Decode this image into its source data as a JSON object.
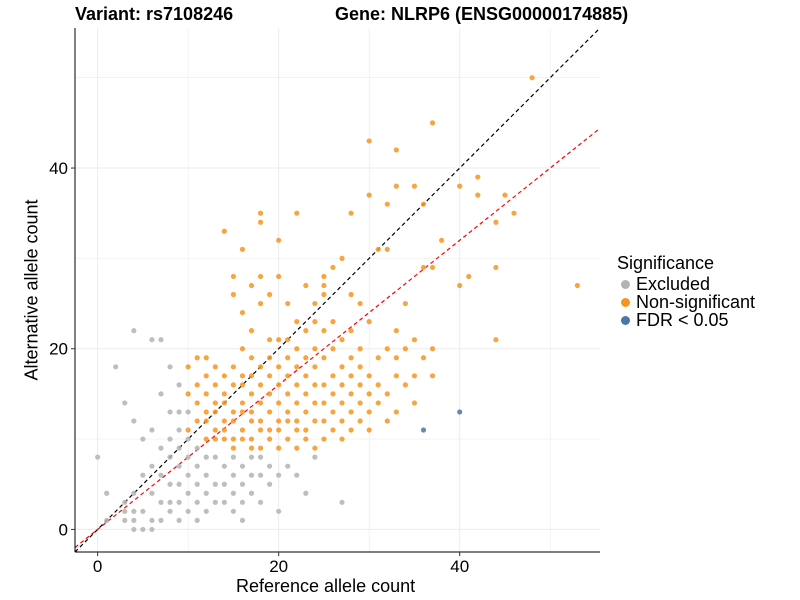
{
  "title_left": "Variant: rs7108246",
  "title_right": "Gene: NLRP6 (ENSG00000174885)",
  "chart_data": {
    "type": "scatter",
    "xlabel": "Reference allele count",
    "ylabel": "Alternative allele count",
    "xlim": [
      -2.5,
      55.5
    ],
    "ylim": [
      -2.5,
      55.5
    ],
    "x_ticks": [
      0,
      20,
      40
    ],
    "y_ticks": [
      0,
      20,
      40
    ],
    "grid": true,
    "legend_position": "right",
    "legend_title": "Significance",
    "reference_lines": [
      {
        "name": "identity",
        "slope": 1.0,
        "intercept": 0,
        "color": "#000000",
        "style": "dashed"
      },
      {
        "name": "fit",
        "slope": 0.8,
        "intercept": 0,
        "color": "#ff0000",
        "style": "dashed"
      }
    ],
    "series": [
      {
        "name": "Excluded",
        "color": "#b3b3b3",
        "points": [
          [
            0,
            8
          ],
          [
            1,
            4
          ],
          [
            1,
            1
          ],
          [
            2,
            18
          ],
          [
            3,
            14
          ],
          [
            3,
            3
          ],
          [
            3,
            2
          ],
          [
            3,
            1
          ],
          [
            4,
            22
          ],
          [
            4,
            12
          ],
          [
            4,
            4
          ],
          [
            4,
            2
          ],
          [
            4,
            1
          ],
          [
            4,
            0
          ],
          [
            5,
            10
          ],
          [
            5,
            6
          ],
          [
            5,
            2
          ],
          [
            5,
            0
          ],
          [
            6,
            21
          ],
          [
            6,
            11
          ],
          [
            6,
            7
          ],
          [
            6,
            4
          ],
          [
            6,
            1
          ],
          [
            6,
            0
          ],
          [
            7,
            21
          ],
          [
            7,
            15
          ],
          [
            7,
            9
          ],
          [
            7,
            6
          ],
          [
            7,
            3
          ],
          [
            7,
            1
          ],
          [
            8,
            18
          ],
          [
            8,
            13
          ],
          [
            8,
            10
          ],
          [
            8,
            8
          ],
          [
            8,
            5
          ],
          [
            8,
            3
          ],
          [
            8,
            2
          ],
          [
            9,
            16
          ],
          [
            9,
            13
          ],
          [
            9,
            11
          ],
          [
            9,
            9
          ],
          [
            9,
            7
          ],
          [
            9,
            5
          ],
          [
            9,
            3
          ],
          [
            9,
            1
          ],
          [
            10,
            13
          ],
          [
            10,
            10
          ],
          [
            10,
            8
          ],
          [
            10,
            6
          ],
          [
            10,
            4
          ],
          [
            10,
            2
          ],
          [
            11,
            9
          ],
          [
            11,
            7
          ],
          [
            11,
            5
          ],
          [
            11,
            3
          ],
          [
            11,
            1
          ],
          [
            12,
            8
          ],
          [
            12,
            6
          ],
          [
            12,
            4
          ],
          [
            12,
            2
          ],
          [
            13,
            8
          ],
          [
            13,
            5
          ],
          [
            13,
            3
          ],
          [
            14,
            7
          ],
          [
            14,
            5
          ],
          [
            14,
            3
          ],
          [
            15,
            8
          ],
          [
            15,
            6
          ],
          [
            15,
            4
          ],
          [
            15,
            2
          ],
          [
            16,
            7
          ],
          [
            16,
            5
          ],
          [
            16,
            3
          ],
          [
            16,
            1
          ],
          [
            17,
            8
          ],
          [
            17,
            6
          ],
          [
            17,
            4
          ],
          [
            18,
            8
          ],
          [
            18,
            6
          ],
          [
            18,
            3
          ],
          [
            19,
            7
          ],
          [
            19,
            5
          ],
          [
            20,
            6
          ],
          [
            20,
            2
          ],
          [
            21,
            7
          ],
          [
            22,
            6
          ],
          [
            24,
            8
          ],
          [
            23,
            4
          ],
          [
            27,
            3
          ]
        ]
      },
      {
        "name": "Non-significant",
        "color": "#f7941d",
        "points": [
          [
            10,
            11
          ],
          [
            10,
            15
          ],
          [
            10,
            18
          ],
          [
            11,
            12
          ],
          [
            11,
            14
          ],
          [
            11,
            16
          ],
          [
            11,
            19
          ],
          [
            12,
            10
          ],
          [
            12,
            12
          ],
          [
            12,
            13
          ],
          [
            12,
            15
          ],
          [
            12,
            17
          ],
          [
            12,
            19
          ],
          [
            13,
            10
          ],
          [
            13,
            11
          ],
          [
            13,
            13
          ],
          [
            13,
            14
          ],
          [
            13,
            16
          ],
          [
            13,
            18
          ],
          [
            14,
            10
          ],
          [
            14,
            11
          ],
          [
            14,
            12
          ],
          [
            14,
            14
          ],
          [
            14,
            15
          ],
          [
            14,
            17
          ],
          [
            14,
            33
          ],
          [
            15,
            9
          ],
          [
            15,
            10
          ],
          [
            15,
            12
          ],
          [
            15,
            13
          ],
          [
            15,
            16
          ],
          [
            15,
            18
          ],
          [
            15,
            28
          ],
          [
            15,
            26
          ],
          [
            16,
            10
          ],
          [
            16,
            11
          ],
          [
            16,
            13
          ],
          [
            16,
            14
          ],
          [
            16,
            16
          ],
          [
            16,
            17
          ],
          [
            16,
            20
          ],
          [
            16,
            24
          ],
          [
            16,
            31
          ],
          [
            17,
            9
          ],
          [
            17,
            10
          ],
          [
            17,
            12
          ],
          [
            17,
            13
          ],
          [
            17,
            15
          ],
          [
            17,
            17
          ],
          [
            17,
            19
          ],
          [
            17,
            22
          ],
          [
            17,
            27
          ],
          [
            18,
            9
          ],
          [
            18,
            11
          ],
          [
            18,
            12
          ],
          [
            18,
            14
          ],
          [
            18,
            16
          ],
          [
            18,
            18
          ],
          [
            18,
            25
          ],
          [
            18,
            28
          ],
          [
            18,
            34
          ],
          [
            18,
            35
          ],
          [
            19,
            10
          ],
          [
            19,
            11
          ],
          [
            19,
            13
          ],
          [
            19,
            15
          ],
          [
            19,
            17
          ],
          [
            19,
            19
          ],
          [
            19,
            21
          ],
          [
            19,
            26
          ],
          [
            20,
            9
          ],
          [
            20,
            11
          ],
          [
            20,
            12
          ],
          [
            20,
            14
          ],
          [
            20,
            16
          ],
          [
            20,
            18
          ],
          [
            20,
            21
          ],
          [
            20,
            28
          ],
          [
            20,
            32
          ],
          [
            21,
            10
          ],
          [
            21,
            12
          ],
          [
            21,
            13
          ],
          [
            21,
            15
          ],
          [
            21,
            17
          ],
          [
            21,
            19
          ],
          [
            21,
            21
          ],
          [
            21,
            25
          ],
          [
            22,
            9
          ],
          [
            22,
            11
          ],
          [
            22,
            12
          ],
          [
            22,
            14
          ],
          [
            22,
            16
          ],
          [
            22,
            18
          ],
          [
            22,
            20
          ],
          [
            22,
            23
          ],
          [
            22,
            35
          ],
          [
            23,
            10
          ],
          [
            23,
            11
          ],
          [
            23,
            13
          ],
          [
            23,
            15
          ],
          [
            23,
            17
          ],
          [
            23,
            19
          ],
          [
            23,
            22
          ],
          [
            23,
            27
          ],
          [
            24,
            9
          ],
          [
            24,
            12
          ],
          [
            24,
            14
          ],
          [
            24,
            16
          ],
          [
            24,
            18
          ],
          [
            24,
            20
          ],
          [
            24,
            25
          ],
          [
            24,
            23
          ],
          [
            25,
            10
          ],
          [
            25,
            12
          ],
          [
            25,
            14
          ],
          [
            25,
            16
          ],
          [
            25,
            19
          ],
          [
            25,
            22
          ],
          [
            25,
            27
          ],
          [
            25,
            28
          ],
          [
            25,
            26
          ],
          [
            26,
            11
          ],
          [
            26,
            13
          ],
          [
            26,
            15
          ],
          [
            26,
            17
          ],
          [
            26,
            20
          ],
          [
            26,
            23
          ],
          [
            26,
            29
          ],
          [
            27,
            10
          ],
          [
            27,
            12
          ],
          [
            27,
            14
          ],
          [
            27,
            16
          ],
          [
            27,
            18
          ],
          [
            27,
            21
          ],
          [
            27,
            30
          ],
          [
            28,
            11
          ],
          [
            28,
            13
          ],
          [
            28,
            15
          ],
          [
            28,
            17
          ],
          [
            28,
            19
          ],
          [
            28,
            22
          ],
          [
            28,
            26
          ],
          [
            28,
            35
          ],
          [
            29,
            12
          ],
          [
            29,
            14
          ],
          [
            29,
            16
          ],
          [
            29,
            18
          ],
          [
            29,
            20
          ],
          [
            29,
            25
          ],
          [
            30,
            11
          ],
          [
            30,
            13
          ],
          [
            30,
            15
          ],
          [
            30,
            17
          ],
          [
            30,
            23
          ],
          [
            30,
            37
          ],
          [
            30,
            43
          ],
          [
            31,
            14
          ],
          [
            31,
            16
          ],
          [
            31,
            19
          ],
          [
            31,
            31
          ],
          [
            32,
            12
          ],
          [
            32,
            15
          ],
          [
            32,
            20
          ],
          [
            32,
            31
          ],
          [
            32,
            36
          ],
          [
            33,
            13
          ],
          [
            33,
            17
          ],
          [
            33,
            19
          ],
          [
            33,
            22
          ],
          [
            33,
            38
          ],
          [
            33,
            42
          ],
          [
            34,
            16
          ],
          [
            34,
            20
          ],
          [
            34,
            25
          ],
          [
            35,
            14
          ],
          [
            35,
            17
          ],
          [
            35,
            21
          ],
          [
            35,
            38
          ],
          [
            36,
            19
          ],
          [
            36,
            29
          ],
          [
            36,
            36
          ],
          [
            37,
            17
          ],
          [
            37,
            20
          ],
          [
            37,
            29
          ],
          [
            37,
            45
          ],
          [
            38,
            32
          ],
          [
            40,
            27
          ],
          [
            40,
            38
          ],
          [
            41,
            28
          ],
          [
            42,
            37
          ],
          [
            42,
            39
          ],
          [
            44,
            29
          ],
          [
            44,
            34
          ],
          [
            44,
            21
          ],
          [
            45,
            37
          ],
          [
            46,
            35
          ],
          [
            48,
            50
          ],
          [
            53,
            27
          ]
        ]
      },
      {
        "name": "FDR < 0.05",
        "color": "#4a77a8",
        "points": [
          [
            36,
            11
          ],
          [
            40,
            13
          ]
        ]
      }
    ]
  }
}
